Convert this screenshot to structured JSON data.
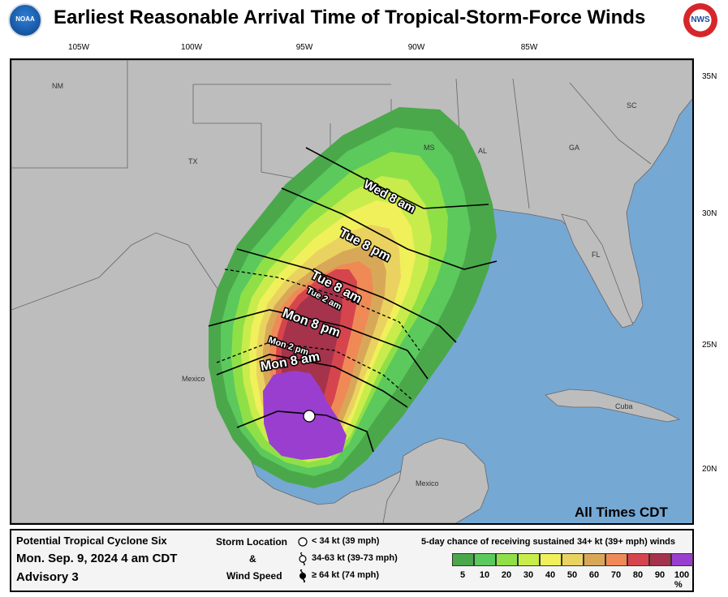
{
  "header": {
    "title": "Earliest Reasonable Arrival Time of Tropical-Storm-Force Winds",
    "noaa_logo_text": "NOAA",
    "nws_logo_text": "NWS"
  },
  "axes": {
    "longitudes": [
      "105W",
      "100W",
      "95W",
      "90W",
      "85W"
    ],
    "latitudes": [
      "35N",
      "30N",
      "25N",
      "20N"
    ]
  },
  "map": {
    "region_labels": [
      "NM",
      "TX",
      "Mexico",
      "MS",
      "AL",
      "GA",
      "SC",
      "FL",
      "Cuba",
      "Mexico"
    ],
    "arrival_labels": [
      "Wed 8 am",
      "Tue 8 pm",
      "Tue 8 am",
      "Tue 2 am",
      "Mon 8 pm",
      "Mon 2 pm",
      "Mon 8 am"
    ],
    "all_times_note": "All Times CDT",
    "colors": {
      "land": "#bdbdbd",
      "water": "#76a8d4",
      "prob_5": "#4aa84a",
      "prob_10": "#5cc95c",
      "prob_20": "#8fe046",
      "prob_30": "#c8ec4c",
      "prob_40": "#f0f05a",
      "prob_50": "#ead260",
      "prob_60": "#d8a858",
      "prob_70": "#ef8a56",
      "prob_80": "#d6454d",
      "prob_90": "#a5334b",
      "prob_100": "#9a3ecf",
      "storm_location": "#ffffff"
    }
  },
  "legend": {
    "advisory_name": "Potential Tropical Cyclone Six",
    "advisory_time": "Mon. Sep. 9, 2024  4 am CDT",
    "advisory_number": "Advisory 3",
    "storm_location_label": "Storm Location",
    "amp": "&",
    "wind_speed_label": "Wind Speed",
    "symbol_1": "< 34 kt (39 mph)",
    "symbol_2": "34-63 kt (39-73 mph)",
    "symbol_3": "≥ 64 kt (74 mph)",
    "probability_title": "5-day chance of receiving sustained 34+ kt (39+ mph) winds",
    "probability_ticks": [
      "5",
      "10",
      "20",
      "30",
      "40",
      "50",
      "60",
      "70",
      "80",
      "90",
      "100 %"
    ],
    "probability_colors": [
      "#4aa84a",
      "#5cc95c",
      "#8fe046",
      "#c8ec4c",
      "#f0f05a",
      "#ead260",
      "#d8a858",
      "#ef8a56",
      "#d6454d",
      "#a5334b",
      "#9a3ecf"
    ]
  }
}
